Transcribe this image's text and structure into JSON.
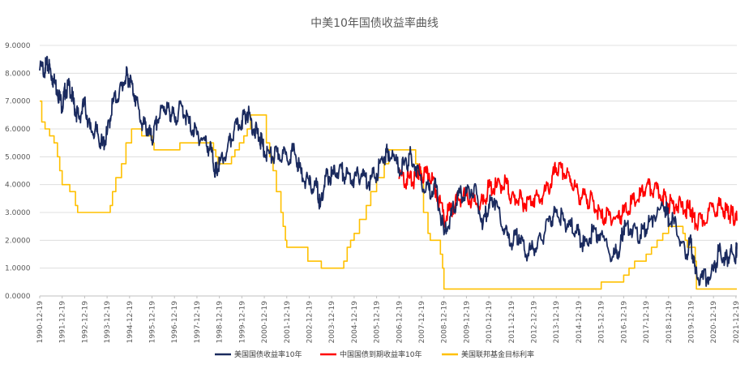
{
  "chart_data": {
    "type": "line",
    "title": "中美10年国债收益率曲线",
    "xlabel": "",
    "ylabel": "",
    "ylim": [
      0,
      9
    ],
    "grid": true,
    "legend_position": "bottom",
    "x_ticks": [
      "1990-12-19",
      "1991-12-19",
      "1992-12-19",
      "1993-12-19",
      "1994-12-19",
      "1995-12-19",
      "1996-12-19",
      "1997-12-19",
      "1998-12-19",
      "1999-12-19",
      "2000-12-19",
      "2001-12-19",
      "2002-12-19",
      "2003-12-19",
      "2004-12-19",
      "2005-12-19",
      "2006-12-19",
      "2007-12-19",
      "2008-12-19",
      "2009-12-19",
      "2010-12-19",
      "2011-12-19",
      "2012-12-19",
      "2013-12-19",
      "2014-12-19",
      "2015-12-19",
      "2016-12-19",
      "2017-12-19",
      "2018-12-19",
      "2019-12-19",
      "2020-12-19",
      "2021-12-19"
    ],
    "y_ticks": [
      "0.0000",
      "1.0000",
      "2.0000",
      "3.0000",
      "4.0000",
      "5.0000",
      "6.0000",
      "7.0000",
      "8.0000",
      "9.0000"
    ],
    "series": [
      {
        "name": "美国国债收益率10年",
        "color": "#1a2a5e",
        "points": [
          [
            1990.96,
            8.1
          ],
          [
            1991.2,
            8.2
          ],
          [
            1991.35,
            8.3
          ],
          [
            1991.5,
            7.9
          ],
          [
            1991.75,
            7.4
          ],
          [
            1991.96,
            6.8
          ],
          [
            1992.1,
            7.4
          ],
          [
            1992.3,
            7.5
          ],
          [
            1992.5,
            6.8
          ],
          [
            1992.7,
            6.4
          ],
          [
            1992.96,
            6.9
          ],
          [
            1993.2,
            6.0
          ],
          [
            1993.5,
            5.9
          ],
          [
            1993.75,
            5.4
          ],
          [
            1993.96,
            5.8
          ],
          [
            1994.2,
            6.9
          ],
          [
            1994.5,
            7.3
          ],
          [
            1994.8,
            7.9
          ],
          [
            1994.96,
            7.8
          ],
          [
            1995.2,
            7.2
          ],
          [
            1995.5,
            6.2
          ],
          [
            1995.75,
            6.0
          ],
          [
            1995.96,
            5.6
          ],
          [
            1996.2,
            6.3
          ],
          [
            1996.5,
            6.8
          ],
          [
            1996.75,
            6.6
          ],
          [
            1996.96,
            6.4
          ],
          [
            1997.3,
            6.8
          ],
          [
            1997.6,
            6.2
          ],
          [
            1997.96,
            5.8
          ],
          [
            1998.3,
            5.6
          ],
          [
            1998.6,
            5.2
          ],
          [
            1998.8,
            4.4
          ],
          [
            1998.96,
            4.7
          ],
          [
            1999.3,
            5.2
          ],
          [
            1999.6,
            5.9
          ],
          [
            1999.96,
            6.3
          ],
          [
            2000.2,
            6.6
          ],
          [
            2000.5,
            6.0
          ],
          [
            2000.75,
            5.7
          ],
          [
            2000.96,
            5.2
          ],
          [
            2001.3,
            5.0
          ],
          [
            2001.6,
            5.1
          ],
          [
            2001.96,
            5.0
          ],
          [
            2002.3,
            5.2
          ],
          [
            2002.6,
            4.4
          ],
          [
            2002.96,
            4.0
          ],
          [
            2003.3,
            3.9
          ],
          [
            2003.45,
            3.2
          ],
          [
            2003.7,
            4.3
          ],
          [
            2003.96,
            4.3
          ],
          [
            2004.3,
            4.6
          ],
          [
            2004.6,
            4.3
          ],
          [
            2004.96,
            4.2
          ],
          [
            2005.3,
            4.4
          ],
          [
            2005.6,
            4.1
          ],
          [
            2005.96,
            4.4
          ],
          [
            2006.3,
            5.0
          ],
          [
            2006.5,
            5.2
          ],
          [
            2006.96,
            4.6
          ],
          [
            2007.3,
            4.7
          ],
          [
            2007.5,
            5.1
          ],
          [
            2007.96,
            4.1
          ],
          [
            2008.3,
            3.8
          ],
          [
            2008.6,
            3.9
          ],
          [
            2008.96,
            2.2
          ],
          [
            2009.3,
            2.9
          ],
          [
            2009.6,
            3.6
          ],
          [
            2009.96,
            3.7
          ],
          [
            2010.3,
            3.9
          ],
          [
            2010.7,
            2.6
          ],
          [
            2010.96,
            3.3
          ],
          [
            2011.2,
            3.5
          ],
          [
            2011.6,
            2.4
          ],
          [
            2011.96,
            1.9
          ],
          [
            2012.3,
            2.2
          ],
          [
            2012.6,
            1.5
          ],
          [
            2012.96,
            1.7
          ],
          [
            2013.3,
            2.0
          ],
          [
            2013.7,
            2.8
          ],
          [
            2013.96,
            3.0
          ],
          [
            2014.3,
            2.7
          ],
          [
            2014.6,
            2.5
          ],
          [
            2014.96,
            2.2
          ],
          [
            2015.2,
            1.8
          ],
          [
            2015.6,
            2.3
          ],
          [
            2015.96,
            2.2
          ],
          [
            2016.5,
            1.4
          ],
          [
            2016.8,
            1.7
          ],
          [
            2016.96,
            2.5
          ],
          [
            2017.3,
            2.4
          ],
          [
            2017.7,
            2.2
          ],
          [
            2017.96,
            2.4
          ],
          [
            2018.3,
            2.9
          ],
          [
            2018.8,
            3.2
          ],
          [
            2018.96,
            2.8
          ],
          [
            2019.3,
            2.5
          ],
          [
            2019.7,
            1.5
          ],
          [
            2019.96,
            1.9
          ],
          [
            2020.15,
            0.8
          ],
          [
            2020.5,
            0.6
          ],
          [
            2020.96,
            0.9
          ],
          [
            2021.2,
            1.6
          ],
          [
            2021.5,
            1.3
          ],
          [
            2021.7,
            1.5
          ],
          [
            2021.96,
            1.5
          ],
          [
            2022.0,
            1.9
          ]
        ]
      },
      {
        "name": "中国国债到期收益率10年",
        "color": "#ff0000",
        "points": [
          [
            2006.96,
            4.2
          ],
          [
            2007.3,
            4.2
          ],
          [
            2007.6,
            4.1
          ],
          [
            2007.8,
            4.5
          ],
          [
            2007.96,
            4.4
          ],
          [
            2008.3,
            4.4
          ],
          [
            2008.6,
            3.8
          ],
          [
            2008.96,
            2.8
          ],
          [
            2009.3,
            3.1
          ],
          [
            2009.6,
            3.5
          ],
          [
            2009.96,
            3.6
          ],
          [
            2010.3,
            3.4
          ],
          [
            2010.7,
            3.3
          ],
          [
            2010.96,
            3.9
          ],
          [
            2011.3,
            3.9
          ],
          [
            2011.7,
            4.1
          ],
          [
            2011.96,
            3.5
          ],
          [
            2012.3,
            3.5
          ],
          [
            2012.6,
            3.3
          ],
          [
            2012.96,
            3.5
          ],
          [
            2013.3,
            3.5
          ],
          [
            2013.7,
            4.0
          ],
          [
            2013.96,
            4.6
          ],
          [
            2014.3,
            4.4
          ],
          [
            2014.6,
            4.2
          ],
          [
            2014.96,
            3.6
          ],
          [
            2015.3,
            3.5
          ],
          [
            2015.6,
            3.4
          ],
          [
            2015.96,
            2.8
          ],
          [
            2016.3,
            2.9
          ],
          [
            2016.7,
            2.8
          ],
          [
            2016.96,
            3.0
          ],
          [
            2017.3,
            3.3
          ],
          [
            2017.7,
            3.6
          ],
          [
            2017.96,
            3.9
          ],
          [
            2018.3,
            3.8
          ],
          [
            2018.7,
            3.6
          ],
          [
            2018.96,
            3.3
          ],
          [
            2019.3,
            3.3
          ],
          [
            2019.7,
            3.1
          ],
          [
            2019.96,
            3.1
          ],
          [
            2020.15,
            2.6
          ],
          [
            2020.5,
            2.7
          ],
          [
            2020.96,
            3.2
          ],
          [
            2021.3,
            3.2
          ],
          [
            2021.6,
            3.0
          ],
          [
            2021.8,
            2.9
          ],
          [
            2022.0,
            2.7
          ]
        ]
      },
      {
        "name": "美国联邦基金目标利率",
        "color": "#ffc000",
        "points": [
          [
            1990.96,
            7.0
          ],
          [
            1991.05,
            6.25
          ],
          [
            1991.2,
            6.0
          ],
          [
            1991.4,
            5.75
          ],
          [
            1991.6,
            5.5
          ],
          [
            1991.75,
            5.0
          ],
          [
            1991.85,
            4.5
          ],
          [
            1991.96,
            4.0
          ],
          [
            1992.3,
            3.75
          ],
          [
            1992.55,
            3.25
          ],
          [
            1992.65,
            3.0
          ],
          [
            1993.2,
            3.0
          ],
          [
            1993.96,
            3.0
          ],
          [
            1994.1,
            3.25
          ],
          [
            1994.2,
            3.75
          ],
          [
            1994.35,
            4.25
          ],
          [
            1994.6,
            4.75
          ],
          [
            1994.8,
            5.5
          ],
          [
            1995.05,
            6.0
          ],
          [
            1995.5,
            5.75
          ],
          [
            1995.96,
            5.5
          ],
          [
            1996.05,
            5.25
          ],
          [
            1996.5,
            5.25
          ],
          [
            1997.2,
            5.5
          ],
          [
            1997.96,
            5.5
          ],
          [
            1998.7,
            5.25
          ],
          [
            1998.8,
            5.0
          ],
          [
            1998.9,
            4.75
          ],
          [
            1999.5,
            5.0
          ],
          [
            1999.65,
            5.25
          ],
          [
            1999.85,
            5.5
          ],
          [
            2000.05,
            5.75
          ],
          [
            2000.2,
            6.0
          ],
          [
            2000.35,
            6.5
          ],
          [
            2000.96,
            6.5
          ],
          [
            2001.05,
            5.5
          ],
          [
            2001.2,
            5.0
          ],
          [
            2001.35,
            4.5
          ],
          [
            2001.5,
            3.75
          ],
          [
            2001.7,
            3.0
          ],
          [
            2001.8,
            2.5
          ],
          [
            2001.9,
            2.0
          ],
          [
            2001.96,
            1.75
          ],
          [
            2002.8,
            1.75
          ],
          [
            2002.9,
            1.25
          ],
          [
            2003.5,
            1.0
          ],
          [
            2004.4,
            1.0
          ],
          [
            2004.5,
            1.25
          ],
          [
            2004.65,
            1.75
          ],
          [
            2004.8,
            2.0
          ],
          [
            2004.96,
            2.25
          ],
          [
            2005.2,
            2.75
          ],
          [
            2005.5,
            3.25
          ],
          [
            2005.7,
            3.75
          ],
          [
            2005.96,
            4.25
          ],
          [
            2006.3,
            4.75
          ],
          [
            2006.5,
            5.25
          ],
          [
            2007.6,
            5.25
          ],
          [
            2007.7,
            4.75
          ],
          [
            2007.8,
            4.5
          ],
          [
            2007.96,
            4.25
          ],
          [
            2008.05,
            3.0
          ],
          [
            2008.25,
            2.25
          ],
          [
            2008.35,
            2.0
          ],
          [
            2008.8,
            1.5
          ],
          [
            2008.9,
            1.0
          ],
          [
            2008.96,
            0.25
          ],
          [
            2015.9,
            0.25
          ],
          [
            2015.96,
            0.5
          ],
          [
            2016.96,
            0.75
          ],
          [
            2017.2,
            1.0
          ],
          [
            2017.45,
            1.25
          ],
          [
            2017.96,
            1.5
          ],
          [
            2018.2,
            1.75
          ],
          [
            2018.45,
            2.0
          ],
          [
            2018.7,
            2.25
          ],
          [
            2018.96,
            2.5
          ],
          [
            2019.6,
            2.25
          ],
          [
            2019.7,
            2.0
          ],
          [
            2019.8,
            1.75
          ],
          [
            2020.15,
            1.25
          ],
          [
            2020.2,
            0.25
          ],
          [
            2022.0,
            0.25
          ]
        ]
      }
    ]
  }
}
